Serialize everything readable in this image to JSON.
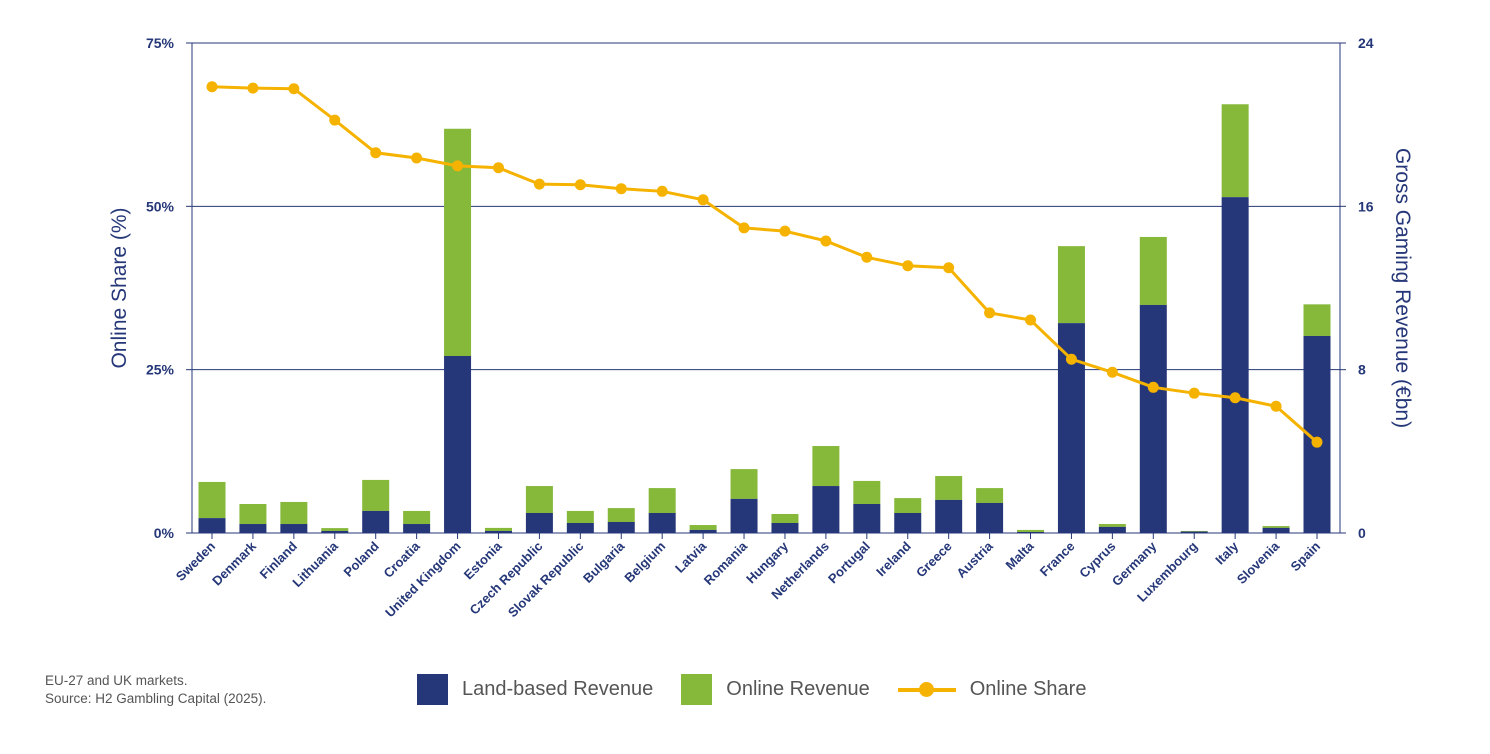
{
  "chart_data": {
    "type": "bar+line",
    "categories": [
      "Sweden",
      "Denmark",
      "Finland",
      "Lithuania",
      "Poland",
      "Croatia",
      "United Kingdom",
      "Estonia",
      "Czech Republic",
      "Slovak Republic",
      "Bulgaria",
      "Belgium",
      "Latvia",
      "Romania",
      "Hungary",
      "Netherlands",
      "Portugal",
      "Ireland",
      "Greece",
      "Austria",
      "Malta",
      "France",
      "Cyprus",
      "Germany",
      "Luxembourg",
      "Italy",
      "Slovenia",
      "Spain"
    ],
    "series": [
      {
        "name": "Land-based Revenue",
        "type": "stacked-bar",
        "axis": "right",
        "color": "#253778",
        "values": [
          0.73,
          0.44,
          0.44,
          0.1,
          1.08,
          0.44,
          8.67,
          0.1,
          0.98,
          0.49,
          0.54,
          0.98,
          0.15,
          1.67,
          0.49,
          2.3,
          1.42,
          0.98,
          1.62,
          1.47,
          0.05,
          10.28,
          0.3,
          11.17,
          0.07,
          16.45,
          0.25,
          9.65
        ]
      },
      {
        "name": "Online Revenue",
        "type": "stacked-bar",
        "axis": "right",
        "color": "#86b83a",
        "values": [
          1.77,
          0.98,
          1.08,
          0.14,
          1.52,
          0.64,
          11.13,
          0.15,
          1.32,
          0.59,
          0.68,
          1.22,
          0.24,
          1.46,
          0.44,
          1.96,
          1.13,
          0.73,
          1.17,
          0.73,
          0.1,
          3.77,
          0.14,
          3.33,
          0.03,
          4.55,
          0.09,
          1.55
        ]
      },
      {
        "name": "Online Share",
        "type": "line",
        "axis": "left",
        "color": "#f5b300",
        "values": [
          68.3,
          68.1,
          68.0,
          63.2,
          58.2,
          57.4,
          56.2,
          55.9,
          53.4,
          53.3,
          52.7,
          52.3,
          51.0,
          46.7,
          46.2,
          44.7,
          42.2,
          40.9,
          40.6,
          33.7,
          32.6,
          26.6,
          24.6,
          22.3,
          21.4,
          20.7,
          19.4,
          13.9
        ]
      }
    ],
    "left_axis": {
      "label": "Online Share (%)",
      "ylim": [
        0,
        75
      ],
      "ticks": [
        "0%",
        "25%",
        "50%",
        "75%"
      ]
    },
    "right_axis": {
      "label": "Gross Gaming Revenue (€bn)",
      "ylim": [
        0,
        24
      ],
      "ticks": [
        "0",
        "8",
        "16",
        "24"
      ]
    },
    "grid": true,
    "legend": "bottom"
  },
  "notes": {
    "line1": "EU-27 and UK markets.",
    "line2": "Source: H2 Gambling Capital (2025)."
  }
}
